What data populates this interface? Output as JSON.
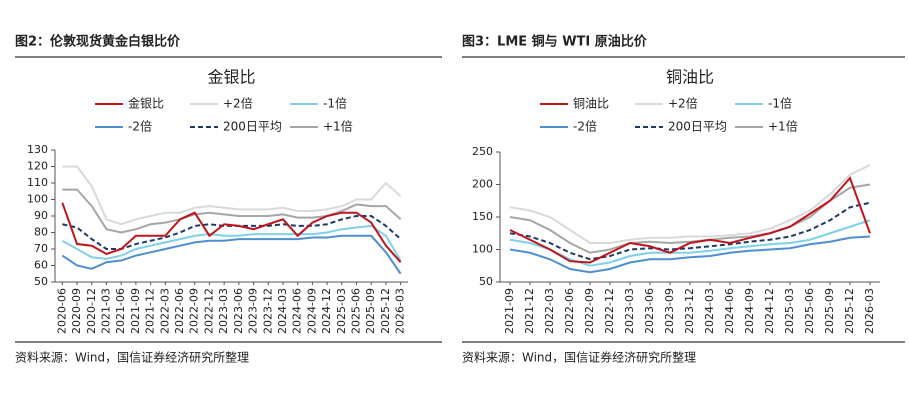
{
  "panels": [
    {
      "caption": "图2：伦敦现货黄金白银比价",
      "source": "资料来源：Wind，国信证券经济研究所整理"
    },
    {
      "caption": "图3：LME 铜与 WTI 原油比价",
      "source": "资料来源：Wind，国信证券经济研究所整理"
    }
  ],
  "chart_data": [
    {
      "type": "line",
      "title": "金银比",
      "categories": [
        "2020-06",
        "2020-09",
        "2020-12",
        "2021-03",
        "2021-06",
        "2021-09",
        "2021-12",
        "2022-03",
        "2022-06",
        "2022-09",
        "2022-12",
        "2023-03",
        "2023-06",
        "2023-09",
        "2023-12",
        "2024-03",
        "2024-06",
        "2024-09",
        "2024-12",
        "2025-03",
        "2025-06",
        "2025-09",
        "2025-12",
        "2026-03"
      ],
      "ylim": [
        50,
        130
      ],
      "yticks": [
        50,
        60,
        70,
        80,
        90,
        100,
        110,
        120,
        130
      ],
      "series": [
        {
          "name": "金银比",
          "color": "#c0141c",
          "width": 2,
          "values": [
            98,
            73,
            72,
            67,
            70,
            78,
            78,
            78,
            88,
            92,
            78,
            85,
            84,
            82,
            85,
            88,
            78,
            86,
            90,
            92,
            92,
            86,
            72,
            62
          ]
        },
        {
          "name": "+2倍",
          "color": "#d9d9d9",
          "width": 2,
          "values": [
            120,
            120,
            108,
            88,
            85,
            88,
            90,
            92,
            92,
            95,
            96,
            95,
            94,
            94,
            94,
            95,
            93,
            93,
            94,
            96,
            100,
            100,
            110,
            102
          ]
        },
        {
          "name": "-1倍",
          "color": "#7fd0e8",
          "width": 2,
          "values": [
            75,
            70,
            65,
            64,
            66,
            70,
            72,
            74,
            76,
            78,
            79,
            78,
            78,
            79,
            79,
            79,
            79,
            79,
            80,
            82,
            83,
            84,
            78,
            63
          ]
        },
        {
          "name": "-2倍",
          "color": "#4f8fcf",
          "width": 2,
          "values": [
            66,
            60,
            58,
            62,
            63,
            66,
            68,
            70,
            72,
            74,
            75,
            75,
            76,
            76,
            76,
            76,
            76,
            77,
            77,
            78,
            78,
            78,
            68,
            55
          ]
        },
        {
          "name": "200日平均",
          "color": "#1f3a68",
          "width": 2,
          "dash": true,
          "values": [
            85,
            83,
            76,
            70,
            70,
            73,
            75,
            77,
            80,
            84,
            85,
            84,
            84,
            84,
            84,
            85,
            84,
            84,
            85,
            88,
            90,
            90,
            84,
            76
          ]
        },
        {
          "name": "+1倍",
          "color": "#a6a6a6",
          "width": 2,
          "values": [
            106,
            106,
            96,
            82,
            80,
            82,
            85,
            86,
            88,
            91,
            92,
            91,
            90,
            90,
            90,
            91,
            89,
            89,
            90,
            93,
            97,
            96,
            96,
            88
          ]
        }
      ]
    },
    {
      "type": "line",
      "title": "铜油比",
      "categories": [
        "2021-09",
        "2021-12",
        "2022-03",
        "2022-06",
        "2022-09",
        "2022-12",
        "2023-03",
        "2023-06",
        "2023-09",
        "2023-12",
        "2024-03",
        "2024-06",
        "2024-09",
        "2024-12",
        "2025-03",
        "2025-06",
        "2025-09",
        "2025-12",
        "2026-03"
      ],
      "ylim": [
        50,
        250
      ],
      "yticks": [
        50,
        100,
        150,
        200,
        250
      ],
      "series": [
        {
          "name": "铜油比",
          "color": "#c0141c",
          "width": 2,
          "values": [
            130,
            115,
            100,
            82,
            80,
            95,
            110,
            105,
            95,
            110,
            115,
            110,
            118,
            125,
            135,
            155,
            175,
            210,
            125
          ]
        },
        {
          "name": "+2倍",
          "color": "#d9d9d9",
          "width": 2,
          "values": [
            165,
            160,
            150,
            130,
            110,
            110,
            115,
            118,
            118,
            120,
            120,
            122,
            125,
            132,
            145,
            160,
            185,
            215,
            230
          ]
        },
        {
          "name": "-1倍",
          "color": "#7fd0e8",
          "width": 2,
          "values": [
            115,
            110,
            100,
            85,
            75,
            80,
            90,
            95,
            95,
            95,
            98,
            102,
            105,
            108,
            110,
            115,
            125,
            135,
            145
          ]
        },
        {
          "name": "-2倍",
          "color": "#4f8fcf",
          "width": 2,
          "values": [
            100,
            95,
            85,
            70,
            65,
            70,
            80,
            85,
            85,
            88,
            90,
            95,
            98,
            100,
            102,
            108,
            112,
            118,
            120
          ]
        },
        {
          "name": "200日平均",
          "color": "#1f3a68",
          "width": 2,
          "dash": true,
          "values": [
            125,
            120,
            110,
            95,
            85,
            90,
            100,
            102,
            100,
            102,
            105,
            108,
            112,
            115,
            120,
            130,
            145,
            165,
            172
          ]
        },
        {
          "name": "+1倍",
          "color": "#a6a6a6",
          "width": 2,
          "values": [
            150,
            145,
            130,
            110,
            95,
            100,
            110,
            112,
            110,
            112,
            115,
            118,
            120,
            125,
            135,
            150,
            175,
            195,
            200
          ]
        }
      ]
    }
  ]
}
